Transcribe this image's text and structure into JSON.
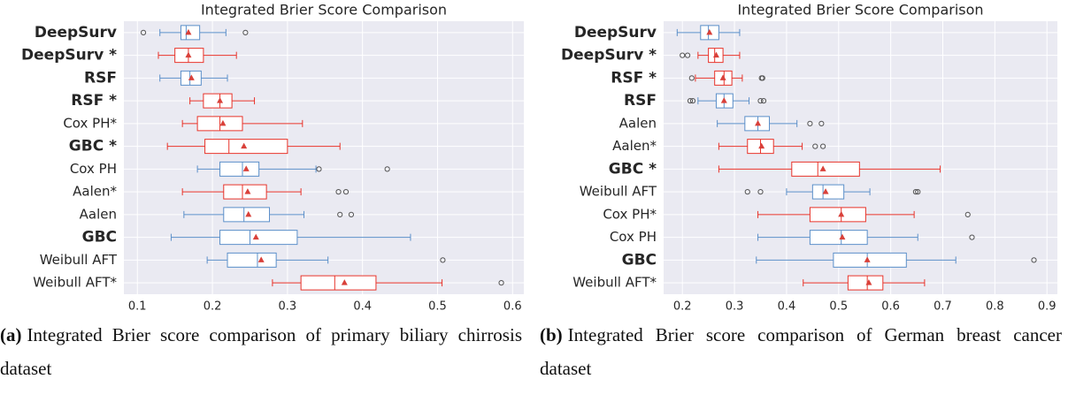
{
  "chart_data": [
    {
      "type": "box",
      "title": "Integrated Brier Score Comparison",
      "categories": [
        "DeepSurv",
        "DeepSurv *",
        "RSF",
        "RSF *",
        "Cox PH*",
        "GBC *",
        "Cox PH",
        "Aalen*",
        "Aalen",
        "GBC",
        "Weibull AFT",
        "Weibull AFT*"
      ],
      "label_bold": [
        true,
        true,
        true,
        true,
        false,
        true,
        false,
        false,
        false,
        true,
        false,
        false
      ],
      "boxes": [
        {
          "whislo": 0.13,
          "q1": 0.158,
          "med": 0.165,
          "q3": 0.183,
          "whishi": 0.218,
          "mean": 0.168,
          "fliers": [
            0.108,
            0.244
          ],
          "color": "#5b8fc9"
        },
        {
          "whislo": 0.128,
          "q1": 0.15,
          "med": 0.168,
          "q3": 0.188,
          "whishi": 0.232,
          "mean": 0.168,
          "fliers": [],
          "color": "#e8332a"
        },
        {
          "whislo": 0.13,
          "q1": 0.158,
          "med": 0.17,
          "q3": 0.185,
          "whishi": 0.22,
          "mean": 0.172,
          "fliers": [],
          "color": "#5b8fc9"
        },
        {
          "whislo": 0.17,
          "q1": 0.188,
          "med": 0.21,
          "q3": 0.226,
          "whishi": 0.256,
          "mean": 0.21,
          "fliers": [],
          "color": "#e8332a"
        },
        {
          "whislo": 0.16,
          "q1": 0.18,
          "med": 0.21,
          "q3": 0.24,
          "whishi": 0.32,
          "mean": 0.214,
          "fliers": [],
          "color": "#e8332a"
        },
        {
          "whislo": 0.14,
          "q1": 0.19,
          "med": 0.222,
          "q3": 0.3,
          "whishi": 0.37,
          "mean": 0.242,
          "fliers": [],
          "color": "#e8332a"
        },
        {
          "whislo": 0.18,
          "q1": 0.21,
          "med": 0.24,
          "q3": 0.262,
          "whishi": 0.338,
          "mean": 0.245,
          "fliers": [
            0.342,
            0.433
          ],
          "color": "#5b8fc9"
        },
        {
          "whislo": 0.16,
          "q1": 0.215,
          "med": 0.24,
          "q3": 0.272,
          "whishi": 0.318,
          "mean": 0.247,
          "fliers": [
            0.368,
            0.378
          ],
          "color": "#e8332a"
        },
        {
          "whislo": 0.162,
          "q1": 0.215,
          "med": 0.242,
          "q3": 0.276,
          "whishi": 0.322,
          "mean": 0.248,
          "fliers": [
            0.37,
            0.385
          ],
          "color": "#5b8fc9"
        },
        {
          "whislo": 0.145,
          "q1": 0.21,
          "med": 0.25,
          "q3": 0.313,
          "whishi": 0.464,
          "mean": 0.258,
          "fliers": [],
          "color": "#5b8fc9"
        },
        {
          "whislo": 0.193,
          "q1": 0.22,
          "med": 0.26,
          "q3": 0.285,
          "whishi": 0.354,
          "mean": 0.265,
          "fliers": [
            0.507
          ],
          "color": "#5b8fc9"
        },
        {
          "whislo": 0.28,
          "q1": 0.318,
          "med": 0.363,
          "q3": 0.418,
          "whishi": 0.506,
          "mean": 0.376,
          "fliers": [
            0.585
          ],
          "color": "#e8332a"
        }
      ],
      "mean_color": "#d9413a",
      "flier_color": "#555555",
      "xlim": [
        0.082,
        0.615
      ],
      "xticks": [
        0.1,
        0.2,
        0.3,
        0.4,
        0.5,
        0.6
      ],
      "grid": true,
      "caption": {
        "label": "(a)",
        "text": "Integrated Brier score comparison of primary biliary chirrosis dataset"
      }
    },
    {
      "type": "box",
      "title": "Integrated Brier Score Comparison",
      "categories": [
        "DeepSurv",
        "DeepSurv *",
        "RSF *",
        "RSF",
        "Aalen",
        "Aalen*",
        "GBC *",
        "Weibull AFT",
        "Cox PH*",
        "Cox PH",
        "GBC",
        "Weibull AFT*"
      ],
      "label_bold": [
        true,
        true,
        true,
        true,
        false,
        false,
        true,
        false,
        false,
        false,
        true,
        false
      ],
      "boxes": [
        {
          "whislo": 0.19,
          "q1": 0.235,
          "med": 0.25,
          "q3": 0.27,
          "whishi": 0.31,
          "mean": 0.252,
          "fliers": [],
          "color": "#5b8fc9"
        },
        {
          "whislo": 0.23,
          "q1": 0.25,
          "med": 0.262,
          "q3": 0.278,
          "whishi": 0.31,
          "mean": 0.265,
          "fliers": [
            0.2,
            0.21
          ],
          "color": "#e8332a"
        },
        {
          "whislo": 0.225,
          "q1": 0.262,
          "med": 0.28,
          "q3": 0.295,
          "whishi": 0.315,
          "mean": 0.278,
          "fliers": [
            0.218,
            0.352,
            0.354
          ],
          "color": "#e8332a"
        },
        {
          "whislo": 0.23,
          "q1": 0.265,
          "med": 0.28,
          "q3": 0.297,
          "whishi": 0.328,
          "mean": 0.28,
          "fliers": [
            0.215,
            0.22,
            0.35,
            0.356
          ],
          "color": "#5b8fc9"
        },
        {
          "whislo": 0.267,
          "q1": 0.32,
          "med": 0.345,
          "q3": 0.367,
          "whishi": 0.42,
          "mean": 0.345,
          "fliers": [
            0.445,
            0.467
          ],
          "color": "#5b8fc9"
        },
        {
          "whislo": 0.27,
          "q1": 0.325,
          "med": 0.35,
          "q3": 0.375,
          "whishi": 0.43,
          "mean": 0.352,
          "fliers": [
            0.455,
            0.47
          ],
          "color": "#e8332a"
        },
        {
          "whislo": 0.27,
          "q1": 0.41,
          "med": 0.46,
          "q3": 0.54,
          "whishi": 0.695,
          "mean": 0.47,
          "fliers": [],
          "color": "#e8332a"
        },
        {
          "whislo": 0.4,
          "q1": 0.45,
          "med": 0.47,
          "q3": 0.51,
          "whishi": 0.56,
          "mean": 0.475,
          "fliers": [
            0.325,
            0.35,
            0.648,
            0.652
          ],
          "color": "#5b8fc9"
        },
        {
          "whislo": 0.345,
          "q1": 0.445,
          "med": 0.505,
          "q3": 0.552,
          "whishi": 0.645,
          "mean": 0.505,
          "fliers": [
            0.748
          ],
          "color": "#e8332a"
        },
        {
          "whislo": 0.345,
          "q1": 0.445,
          "med": 0.505,
          "q3": 0.555,
          "whishi": 0.652,
          "mean": 0.507,
          "fliers": [
            0.756
          ],
          "color": "#5b8fc9"
        },
        {
          "whislo": 0.342,
          "q1": 0.49,
          "med": 0.555,
          "q3": 0.63,
          "whishi": 0.725,
          "mean": 0.555,
          "fliers": [
            0.875
          ],
          "color": "#5b8fc9"
        },
        {
          "whislo": 0.432,
          "q1": 0.518,
          "med": 0.555,
          "q3": 0.585,
          "whishi": 0.665,
          "mean": 0.558,
          "fliers": [],
          "color": "#e8332a"
        }
      ],
      "mean_color": "#d9413a",
      "flier_color": "#555555",
      "xlim": [
        0.164,
        0.92
      ],
      "xticks": [
        0.2,
        0.3,
        0.4,
        0.5,
        0.6,
        0.7,
        0.8,
        0.9
      ],
      "grid": true,
      "caption": {
        "label": "(b)",
        "text": "Integrated Brier score comparison of German breast cancer dataset"
      }
    }
  ]
}
